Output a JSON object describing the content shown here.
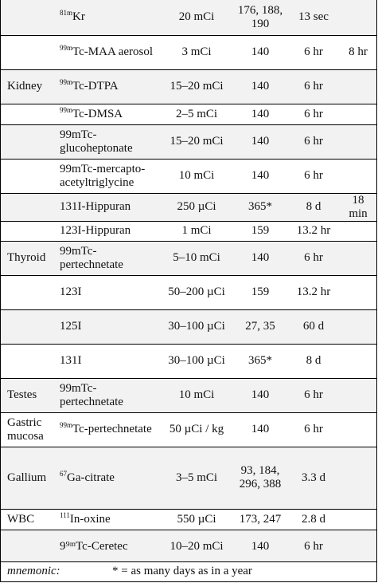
{
  "rows": [
    {
      "organ": "",
      "sup": "81m",
      "agent": "Kr",
      "dose": "20 mCi",
      "kev": "176, 188, 190",
      "half": "13 sec",
      "extra": "",
      "h": 44
    },
    {
      "organ": "",
      "sup": "99m",
      "agent": "Tc-MAA aerosol",
      "dose": "3 mCi",
      "kev": "140",
      "half": "6 hr",
      "extra": "8 hr",
      "h": 43
    },
    {
      "organ": "Kidney",
      "sup": "99m",
      "agent": "Tc-DTPA",
      "dose": "15–20 mCi",
      "kev": "140",
      "half": "6 hr",
      "extra": "",
      "h": 43
    },
    {
      "organ": "",
      "sup": "99m",
      "agent": "Tc-DMSA",
      "dose": "2–5 mCi",
      "kev": "140",
      "half": "6 hr",
      "extra": "",
      "h": 26
    },
    {
      "organ": "",
      "sup": "",
      "agent": "99mTc-glucoheptonate",
      "dose": "15–20 mCi",
      "kev": "140",
      "half": "6 hr",
      "extra": "",
      "h": 43
    },
    {
      "organ": "",
      "sup": "",
      "agent": "99mTc-mercapto-acetyltriglycine",
      "dose": "10 mCi",
      "kev": "140",
      "half": "6 hr",
      "extra": "",
      "h": 43
    },
    {
      "organ": "",
      "sup": "",
      "agent": "131I-Hippuran",
      "dose": "250 µCi",
      "kev": "365*",
      "half": "8 d",
      "extra": "18 min",
      "h": 25
    },
    {
      "organ": "",
      "sup": "",
      "agent": "123I-Hippuran",
      "dose": "1 mCi",
      "kev": "159",
      "half": "13.2 hr",
      "extra": "",
      "h": 25
    },
    {
      "organ": "Thyroid",
      "sup": "",
      "agent": "99mTc-pertechnetate",
      "dose": "5–10 mCi",
      "kev": "140",
      "half": "6 hr",
      "extra": "",
      "h": 43
    },
    {
      "organ": "",
      "sup": "",
      "agent": "123I",
      "dose": "50–200 µCi",
      "kev": "159",
      "half": "13.2 hr",
      "extra": "",
      "h": 43
    },
    {
      "organ": "",
      "sup": "",
      "agent": "125I",
      "dose": "30–100 µCi",
      "kev": "27, 35",
      "half": "60 d",
      "extra": "",
      "h": 43
    },
    {
      "organ": "",
      "sup": "",
      "agent": "131I",
      "dose": "30–100 µCi",
      "kev": "365*",
      "half": "8 d",
      "extra": "",
      "h": 43
    },
    {
      "organ": "Testes",
      "sup": "",
      "agent": "99mTc-pertechnetate",
      "dose": "10 mCi",
      "kev": "140",
      "half": "6 hr",
      "extra": "",
      "h": 43
    },
    {
      "organ": "Gastric mucosa",
      "sup": "99m",
      "agent": "Tc-pertechnetate",
      "dose": "50 µCi / kg",
      "kev": "140",
      "half": "6 hr",
      "extra": "",
      "h": 43
    },
    {
      "organ": "Gallium",
      "sup": "67",
      "agent": "Ga-citrate",
      "dose": "3–5 mCi",
      "kev": "93, 184, 296, 388",
      "half": "3.3 d",
      "extra": "",
      "h": 78
    },
    {
      "organ": "WBC",
      "sup": "111",
      "agent": "In-oxine",
      "dose": "550 µCi",
      "kev": "173, 247",
      "half": "2.8 d",
      "extra": "",
      "h": 26
    },
    {
      "organ": "",
      "sup": "",
      "agent": "9⁹ᵐTc-Ceretec",
      "dose": "10–20 mCi",
      "kev": "140",
      "half": "6 hr",
      "extra": "",
      "h": 43
    }
  ],
  "footer": {
    "label": "mnemonic:",
    "text": "* = as many days as in a year"
  }
}
